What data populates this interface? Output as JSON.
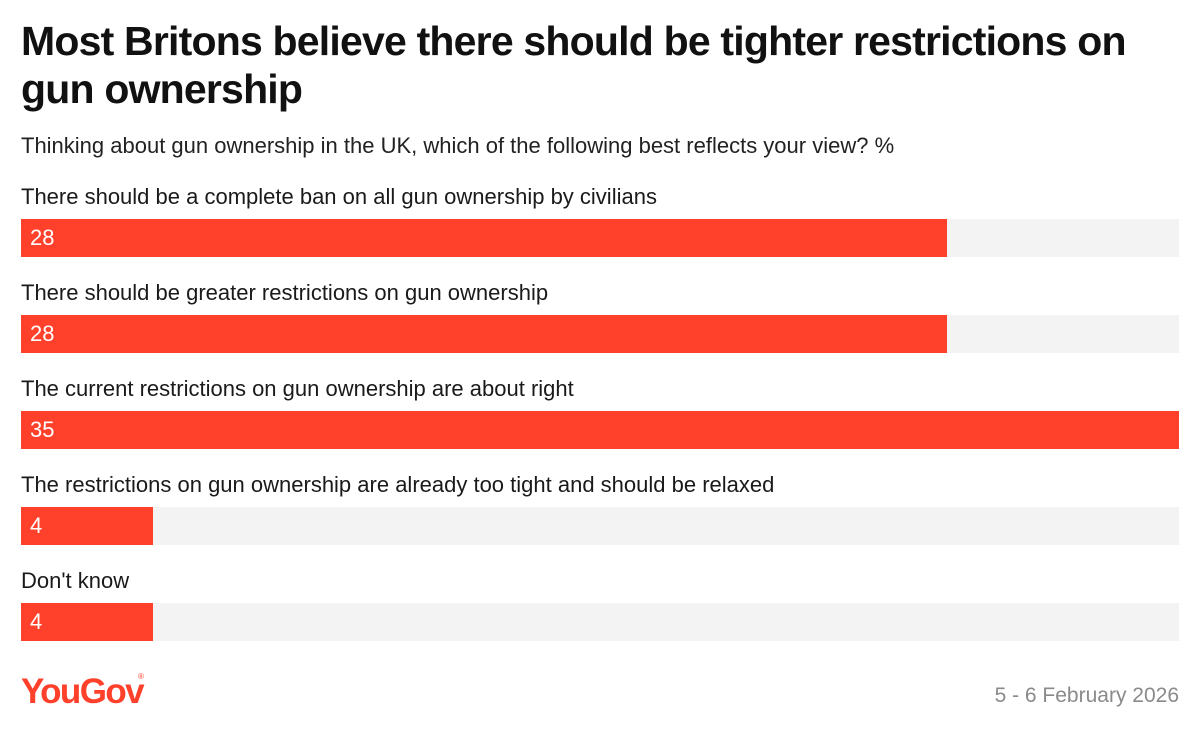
{
  "title": "Most Britons believe there should be tighter restrictions on gun ownership",
  "subtitle": "Thinking about gun ownership in the UK, which of the following best reflects your view? %",
  "chart_data": {
    "type": "bar",
    "orientation": "horizontal",
    "title": "Most Britons believe there should be tighter restrictions on gun ownership",
    "subtitle": "Thinking about gun ownership in the UK, which of the following best reflects your view? %",
    "categories": [
      "There should be a complete ban on all gun ownership by civilians",
      "There should be greater restrictions on gun ownership",
      "The current restrictions on gun ownership are about right",
      "The restrictions on gun ownership are already too tight and should be relaxed",
      "Don't know"
    ],
    "values": [
      28,
      28,
      35,
      4,
      4
    ],
    "xlim": [
      0,
      35
    ],
    "unit": "%",
    "bar_color": "#ff412c",
    "track_color": "#f3f3f3",
    "label_color": "#ffffff"
  },
  "footer": {
    "logo_text": "YouGov",
    "logo_mark": "®",
    "date": "5 - 6 February 2026",
    "date_color": "#8a8a8a"
  }
}
